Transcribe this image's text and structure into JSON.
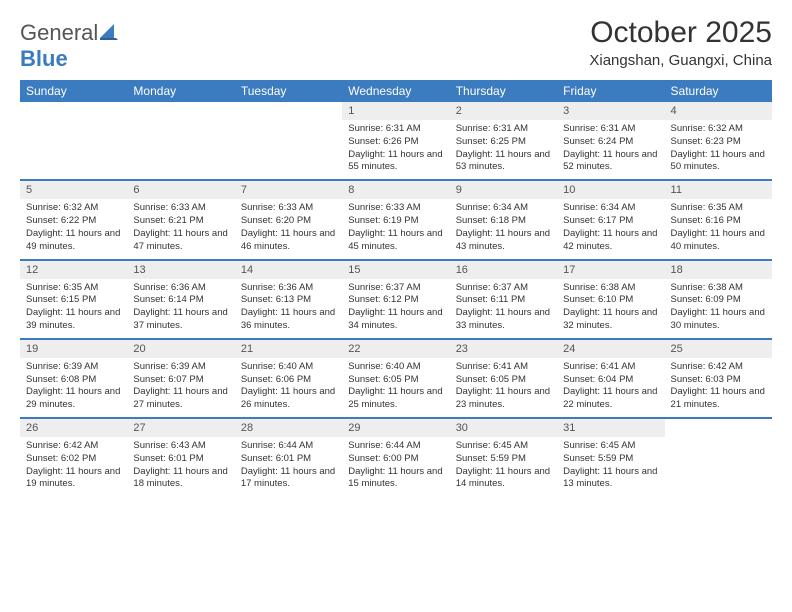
{
  "logo": {
    "text1": "General",
    "text2": "Blue"
  },
  "title": "October 2025",
  "location": "Xiangshan, Guangxi, China",
  "colors": {
    "header_bg": "#3b7bbf",
    "header_text": "#ffffff",
    "daynum_bg": "#eeeeee",
    "daynum_text": "#555555",
    "body_text": "#333333",
    "rule": "#3b7bbf"
  },
  "weekdays": [
    "Sunday",
    "Monday",
    "Tuesday",
    "Wednesday",
    "Thursday",
    "Friday",
    "Saturday"
  ],
  "weeks": [
    [
      null,
      null,
      null,
      {
        "n": "1",
        "sunrise": "Sunrise: 6:31 AM",
        "sunset": "Sunset: 6:26 PM",
        "day": "Daylight: 11 hours and 55 minutes."
      },
      {
        "n": "2",
        "sunrise": "Sunrise: 6:31 AM",
        "sunset": "Sunset: 6:25 PM",
        "day": "Daylight: 11 hours and 53 minutes."
      },
      {
        "n": "3",
        "sunrise": "Sunrise: 6:31 AM",
        "sunset": "Sunset: 6:24 PM",
        "day": "Daylight: 11 hours and 52 minutes."
      },
      {
        "n": "4",
        "sunrise": "Sunrise: 6:32 AM",
        "sunset": "Sunset: 6:23 PM",
        "day": "Daylight: 11 hours and 50 minutes."
      }
    ],
    [
      {
        "n": "5",
        "sunrise": "Sunrise: 6:32 AM",
        "sunset": "Sunset: 6:22 PM",
        "day": "Daylight: 11 hours and 49 minutes."
      },
      {
        "n": "6",
        "sunrise": "Sunrise: 6:33 AM",
        "sunset": "Sunset: 6:21 PM",
        "day": "Daylight: 11 hours and 47 minutes."
      },
      {
        "n": "7",
        "sunrise": "Sunrise: 6:33 AM",
        "sunset": "Sunset: 6:20 PM",
        "day": "Daylight: 11 hours and 46 minutes."
      },
      {
        "n": "8",
        "sunrise": "Sunrise: 6:33 AM",
        "sunset": "Sunset: 6:19 PM",
        "day": "Daylight: 11 hours and 45 minutes."
      },
      {
        "n": "9",
        "sunrise": "Sunrise: 6:34 AM",
        "sunset": "Sunset: 6:18 PM",
        "day": "Daylight: 11 hours and 43 minutes."
      },
      {
        "n": "10",
        "sunrise": "Sunrise: 6:34 AM",
        "sunset": "Sunset: 6:17 PM",
        "day": "Daylight: 11 hours and 42 minutes."
      },
      {
        "n": "11",
        "sunrise": "Sunrise: 6:35 AM",
        "sunset": "Sunset: 6:16 PM",
        "day": "Daylight: 11 hours and 40 minutes."
      }
    ],
    [
      {
        "n": "12",
        "sunrise": "Sunrise: 6:35 AM",
        "sunset": "Sunset: 6:15 PM",
        "day": "Daylight: 11 hours and 39 minutes."
      },
      {
        "n": "13",
        "sunrise": "Sunrise: 6:36 AM",
        "sunset": "Sunset: 6:14 PM",
        "day": "Daylight: 11 hours and 37 minutes."
      },
      {
        "n": "14",
        "sunrise": "Sunrise: 6:36 AM",
        "sunset": "Sunset: 6:13 PM",
        "day": "Daylight: 11 hours and 36 minutes."
      },
      {
        "n": "15",
        "sunrise": "Sunrise: 6:37 AM",
        "sunset": "Sunset: 6:12 PM",
        "day": "Daylight: 11 hours and 34 minutes."
      },
      {
        "n": "16",
        "sunrise": "Sunrise: 6:37 AM",
        "sunset": "Sunset: 6:11 PM",
        "day": "Daylight: 11 hours and 33 minutes."
      },
      {
        "n": "17",
        "sunrise": "Sunrise: 6:38 AM",
        "sunset": "Sunset: 6:10 PM",
        "day": "Daylight: 11 hours and 32 minutes."
      },
      {
        "n": "18",
        "sunrise": "Sunrise: 6:38 AM",
        "sunset": "Sunset: 6:09 PM",
        "day": "Daylight: 11 hours and 30 minutes."
      }
    ],
    [
      {
        "n": "19",
        "sunrise": "Sunrise: 6:39 AM",
        "sunset": "Sunset: 6:08 PM",
        "day": "Daylight: 11 hours and 29 minutes."
      },
      {
        "n": "20",
        "sunrise": "Sunrise: 6:39 AM",
        "sunset": "Sunset: 6:07 PM",
        "day": "Daylight: 11 hours and 27 minutes."
      },
      {
        "n": "21",
        "sunrise": "Sunrise: 6:40 AM",
        "sunset": "Sunset: 6:06 PM",
        "day": "Daylight: 11 hours and 26 minutes."
      },
      {
        "n": "22",
        "sunrise": "Sunrise: 6:40 AM",
        "sunset": "Sunset: 6:05 PM",
        "day": "Daylight: 11 hours and 25 minutes."
      },
      {
        "n": "23",
        "sunrise": "Sunrise: 6:41 AM",
        "sunset": "Sunset: 6:05 PM",
        "day": "Daylight: 11 hours and 23 minutes."
      },
      {
        "n": "24",
        "sunrise": "Sunrise: 6:41 AM",
        "sunset": "Sunset: 6:04 PM",
        "day": "Daylight: 11 hours and 22 minutes."
      },
      {
        "n": "25",
        "sunrise": "Sunrise: 6:42 AM",
        "sunset": "Sunset: 6:03 PM",
        "day": "Daylight: 11 hours and 21 minutes."
      }
    ],
    [
      {
        "n": "26",
        "sunrise": "Sunrise: 6:42 AM",
        "sunset": "Sunset: 6:02 PM",
        "day": "Daylight: 11 hours and 19 minutes."
      },
      {
        "n": "27",
        "sunrise": "Sunrise: 6:43 AM",
        "sunset": "Sunset: 6:01 PM",
        "day": "Daylight: 11 hours and 18 minutes."
      },
      {
        "n": "28",
        "sunrise": "Sunrise: 6:44 AM",
        "sunset": "Sunset: 6:01 PM",
        "day": "Daylight: 11 hours and 17 minutes."
      },
      {
        "n": "29",
        "sunrise": "Sunrise: 6:44 AM",
        "sunset": "Sunset: 6:00 PM",
        "day": "Daylight: 11 hours and 15 minutes."
      },
      {
        "n": "30",
        "sunrise": "Sunrise: 6:45 AM",
        "sunset": "Sunset: 5:59 PM",
        "day": "Daylight: 11 hours and 14 minutes."
      },
      {
        "n": "31",
        "sunrise": "Sunrise: 6:45 AM",
        "sunset": "Sunset: 5:59 PM",
        "day": "Daylight: 11 hours and 13 minutes."
      },
      null
    ]
  ]
}
